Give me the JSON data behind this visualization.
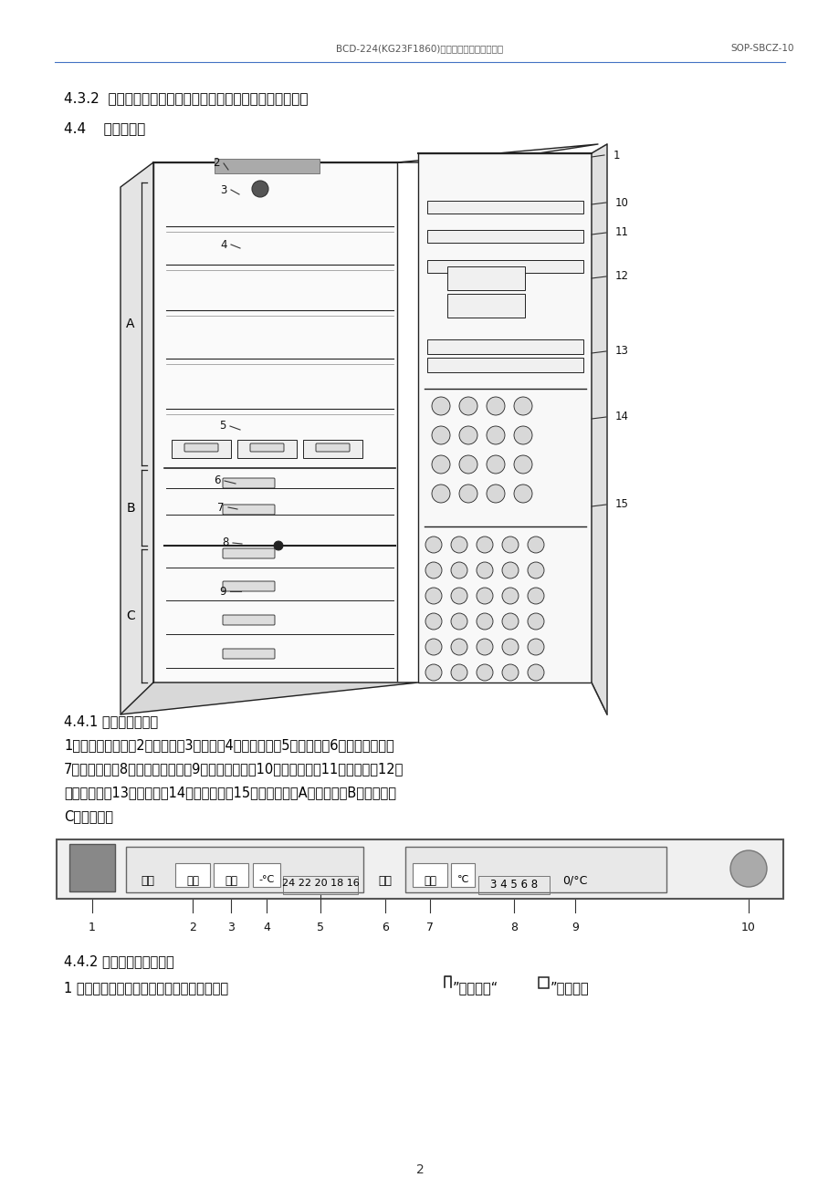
{
  "header_left": "BCD-224(KG23F1860)电冰箱使用标准操作规程",
  "header_right": "SOP-SBCZ-10",
  "section_432": "4.3.2  取下完好已清洁状态标识卡，挂上运行中状态标识卡。",
  "section_44": "4.4    各部位说明",
  "section_441": "4.4.1 冰箱部件说明：",
  "section_441_text1": "1、箱内控制按鈕；2、照明灯；3、风扇；4、玻璃搞盘；5、果菜盒；6、变温室抽屉；",
  "section_441_text2": "7、保湿隔板；8、变温室门开关；9、冷冻室抽屉；10、冷藏室门；11、短瓶架；12、",
  "section_441_text3": "奶酪盒瓶架；13、大瓶架；14、变温室门；15、冷冻室门；A、冷藏室；B、变温室；",
  "section_441_text4": "C、冷冻室。",
  "section_442": "4.4.2 控制面板功能说明：",
  "section_442_text1": "1 电源开关：按动该键接通或关闭冰箱电源。",
  "page_num": "2",
  "bg_color": "#ffffff",
  "text_color": "#000000",
  "header_line_color": "#4472c4"
}
